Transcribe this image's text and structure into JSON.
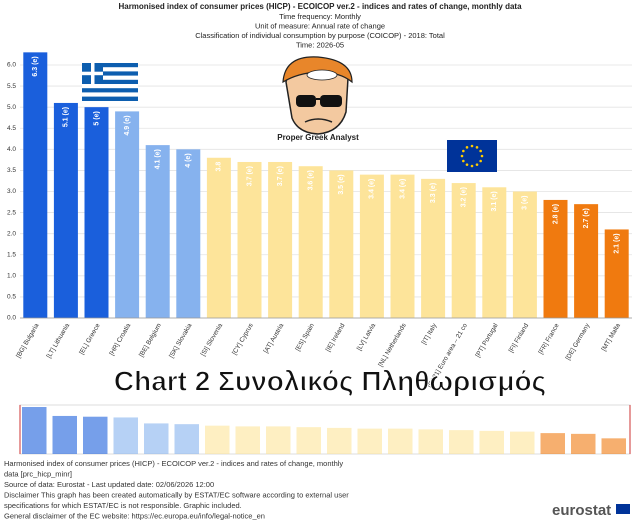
{
  "chart_data": {
    "type": "bar",
    "title": "Harmonised index of consumer prices (HICP) - ECOICOP ver.2 - indices and rates of change, monthly data",
    "subtitles": [
      "Time frequency:  Monthly",
      "Unit of measure:  Annual rate of change",
      "Classification of individual consumption by purpose (COICOP) - 2018:  Total",
      "Time:  2026-05"
    ],
    "categories": [
      "[BG] Bulgaria",
      "[LT] Lithuania",
      "[EL] Greece",
      "[HR] Croatia",
      "[BE] Belgium",
      "[SK] Slovakia",
      "[SI] Slovenia",
      "[CY] Cyprus",
      "[AT] Austria",
      "[ES] Spain",
      "[IE] Ireland",
      "[LV] Latvia",
      "[NL] Netherlands",
      "[IT] Italy",
      "[EA21] Euro area – 21 co",
      "[PT] Portugal",
      "[FI] Finland",
      "[FR] France",
      "[DE] Germany",
      "[MT] Malta"
    ],
    "values": [
      6.3,
      5.1,
      5,
      4.9,
      4.1,
      4,
      3.8,
      3.7,
      3.7,
      3.6,
      3.5,
      3.4,
      3.4,
      3.3,
      3.2,
      3.1,
      3,
      2.8,
      2.7,
      2.1
    ],
    "value_labels": [
      "6.3 (e)",
      "5.1 (e)",
      "5 (e)",
      "4.9 (e)",
      "4.1 (e)",
      "4 (e)",
      "3.8",
      "3.7 (e)",
      "3.7 (e)",
      "3.6 (e)",
      "3.5 (e)",
      "3.4 (e)",
      "3.4 (e)",
      "3.3 (e)",
      "3.2 (e)",
      "3.1 (e)",
      "3 (e)",
      "2.8 (e)",
      "2.7 (e)",
      "2.1 (e)"
    ],
    "colors": [
      "#1a5fdc",
      "#1a5fdc",
      "#1a5fdc",
      "#86b2ee",
      "#86b2ee",
      "#86b2ee",
      "#fde49a",
      "#fde49a",
      "#fde49a",
      "#fde49a",
      "#fde49a",
      "#fde49a",
      "#fde49a",
      "#fde49a",
      "#fde49a",
      "#fde49a",
      "#fde49a",
      "#f07a0f",
      "#f07a0f",
      "#f07a0f"
    ],
    "ylim": [
      0,
      6.3
    ],
    "yticks": [
      {
        "value": 0,
        "label": "0.0"
      },
      0.5,
      {
        "value": 1,
        "label": "1.0"
      },
      1.5,
      {
        "value": 2,
        "label": "2.0"
      },
      2.5,
      {
        "value": 3,
        "label": "3.0"
      },
      3.5,
      {
        "value": 4,
        "label": "4.0"
      },
      4.5,
      {
        "value": 5,
        "label": "5.0"
      },
      5.5,
      {
        "value": 6,
        "label": "6.0"
      }
    ],
    "grid": true,
    "overlay_caption": "Chart 2 Συνολικός Πληθωρισμός",
    "mascot_label": "Proper Greek Analyst",
    "footer": [
      "Harmonised index of consumer prices (HICP) - ECOICOP ver.2 - indices and rates of change, monthly",
      "data [prc_hicp_minr]",
      "Source of data: Eurostat - Last updated date: 02/06/2026 12:00",
      "Disclaimer This graph has been created automatically by ESTAT/EC software according to external user",
      "specifications for which ESTAT/EC is not responsible. Graphic included.",
      "General disclaimer of the EC website: https://ec.europa.eu/info/legal-notice_en"
    ],
    "logo": "eurostat"
  }
}
